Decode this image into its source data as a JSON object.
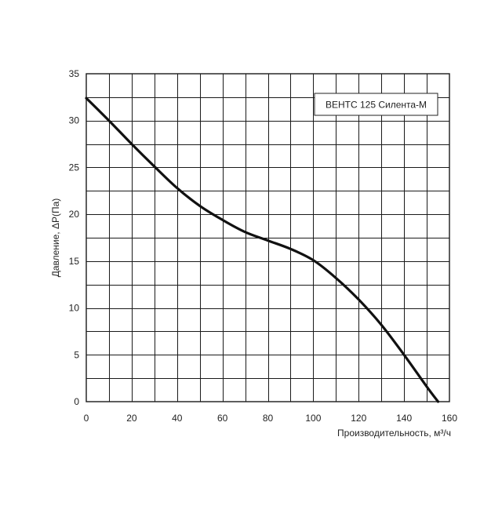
{
  "chart_data": {
    "type": "line",
    "xlabel": "Производительность, м³/ч",
    "ylabel": "Давление, ΔP(Па)",
    "xlim": [
      0,
      160
    ],
    "ylim": [
      0,
      35
    ],
    "x_ticks": [
      0,
      20,
      40,
      60,
      80,
      100,
      120,
      140,
      160
    ],
    "y_ticks": [
      0,
      5,
      10,
      15,
      20,
      25,
      30,
      35
    ],
    "x_minor_gridlines": [
      10,
      30,
      50,
      70,
      90,
      110,
      130,
      150
    ],
    "y_minor_gridlines": [
      2.5,
      7.5,
      12.5,
      17.5,
      22.5,
      27.5,
      32.5
    ],
    "grid": true,
    "legend_position": "top-right",
    "series": [
      {
        "name": "ВЕНТС 125 Силента-М",
        "color": "#111111",
        "x": [
          0,
          10,
          20,
          30,
          40,
          50,
          60,
          70,
          80,
          90,
          100,
          110,
          120,
          130,
          140,
          150,
          155
        ],
        "y": [
          32.4,
          30.0,
          27.5,
          25.1,
          22.8,
          20.9,
          19.4,
          18.1,
          17.2,
          16.3,
          15.1,
          13.2,
          10.9,
          8.2,
          5.0,
          1.6,
          0
        ]
      }
    ]
  }
}
